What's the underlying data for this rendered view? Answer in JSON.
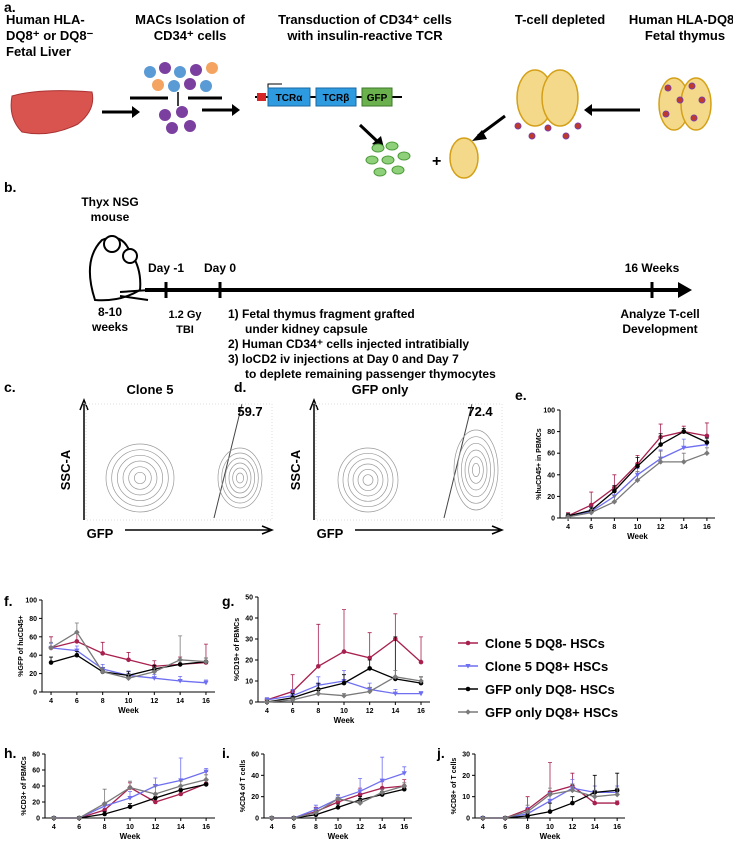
{
  "panel_a": {
    "label": "a.",
    "steps": [
      {
        "lines": [
          "Human HLA-",
          "DQ8⁺ or DQ8⁻",
          "Fetal Liver"
        ]
      },
      {
        "lines": [
          "MACs Isolation of",
          "CD34⁺ cells"
        ]
      },
      {
        "lines": [
          "Transduction of CD34⁺ cells",
          "with insulin-reactive TCR"
        ]
      },
      {
        "lines": [
          "T-cell depleted"
        ]
      },
      {
        "lines": [
          "Human HLA-DQ8⁺",
          "Fetal thymus"
        ]
      }
    ],
    "construct": [
      "TCRα",
      "TCRβ",
      "GFP"
    ],
    "plus": "+"
  },
  "panel_b": {
    "label": "b.",
    "mouse": [
      "Thyx NSG",
      "mouse"
    ],
    "age": [
      "8-10",
      "weeks"
    ],
    "timepoints": [
      "Day -1",
      "Day 0",
      "16 Weeks"
    ],
    "tbi": [
      "1.2 Gy",
      "TBI"
    ],
    "steps": [
      [
        "1) Fetal thymus fragment grafted",
        "under kidney capsule"
      ],
      [
        "2) Human CD34⁺ cells injected intratibially"
      ],
      [
        "3) loCD2 iv injections at Day 0 and Day 7",
        "to deplete remaining passenger thymocytes"
      ]
    ],
    "endpoint": [
      "Analyze T-cell",
      "Development"
    ]
  },
  "flow_panels": [
    {
      "label": "c.",
      "title": "Clone 5",
      "gate": "59.7",
      "y_axis": "SSC-A",
      "x_axis": "GFP"
    },
    {
      "label": "d.",
      "title": "GFP only",
      "gate": "72.4",
      "y_axis": "SSC-A",
      "x_axis": "GFP"
    }
  ],
  "chart_data": [
    {
      "type": "line",
      "label": "e.",
      "ylabel": "%huCD45+ in PBMCs",
      "xlabel": "Week",
      "x": [
        4,
        6,
        8,
        10,
        12,
        14,
        16
      ],
      "xlim": [
        3.3,
        16.7
      ],
      "xticks": [
        4,
        6,
        8,
        10,
        12,
        14,
        16
      ],
      "ylim": [
        0,
        100
      ],
      "yticks": [
        0,
        20,
        40,
        60,
        80,
        100
      ],
      "series": [
        {
          "color": "#a8204f",
          "values": [
            2,
            12,
            28,
            50,
            75,
            80,
            76
          ],
          "errors": [
            3,
            12,
            12,
            8,
            12,
            5,
            12
          ]
        },
        {
          "color": "#6f6ff2",
          "values": [
            1,
            6,
            20,
            40,
            55,
            65,
            68
          ],
          "errors": [
            2,
            4,
            6,
            6,
            8,
            8,
            6
          ]
        },
        {
          "color": "#000000",
          "values": [
            2,
            7,
            25,
            48,
            68,
            80,
            70
          ],
          "errors": [
            2,
            3,
            5,
            8,
            10,
            3,
            4
          ]
        },
        {
          "color": "#7a7a7a",
          "values": [
            1,
            5,
            15,
            35,
            52,
            52,
            60
          ],
          "errors": [
            1,
            3,
            6,
            8,
            10,
            8,
            5
          ]
        }
      ]
    },
    {
      "type": "line",
      "label": "f.",
      "ylabel": "%GFP of huCD45+",
      "xlabel": "Week",
      "x": [
        4,
        6,
        8,
        10,
        12,
        14,
        16
      ],
      "xlim": [
        3.3,
        16.7
      ],
      "xticks": [
        4,
        6,
        8,
        10,
        12,
        14,
        16
      ],
      "ylim": [
        0,
        100
      ],
      "yticks": [
        0,
        20,
        40,
        60,
        80,
        100
      ],
      "series": [
        {
          "color": "#a8204f",
          "values": [
            48,
            55,
            42,
            35,
            28,
            30,
            32
          ],
          "errors": [
            12,
            10,
            12,
            8,
            6,
            8,
            20
          ]
        },
        {
          "color": "#6f6ff2",
          "values": [
            48,
            45,
            25,
            18,
            15,
            12,
            10
          ],
          "errors": [
            5,
            5,
            5,
            5,
            4,
            5,
            3
          ]
        },
        {
          "color": "#000000",
          "values": [
            32,
            40,
            22,
            18,
            25,
            30,
            33
          ],
          "errors": [
            6,
            4,
            4,
            4,
            4,
            5,
            4
          ]
        },
        {
          "color": "#7a7a7a",
          "values": [
            48,
            65,
            22,
            15,
            22,
            35,
            33
          ],
          "errors": [
            6,
            10,
            4,
            4,
            4,
            26,
            4
          ]
        }
      ]
    },
    {
      "type": "line",
      "label": "g.",
      "ylabel": "%CD19+ of PBMCs",
      "xlabel": "Week",
      "x": [
        4,
        6,
        8,
        10,
        12,
        14,
        16
      ],
      "xlim": [
        3.3,
        16.7
      ],
      "xticks": [
        4,
        6,
        8,
        10,
        12,
        14,
        16
      ],
      "ylim": [
        0,
        50
      ],
      "yticks": [
        0,
        10,
        20,
        30,
        40,
        50
      ],
      "series": [
        {
          "name": "Clone 5 DQ8- HSCs",
          "color": "#a8204f",
          "values": [
            1,
            5,
            17,
            24,
            21,
            30,
            19
          ],
          "errors": [
            1,
            8,
            20,
            20,
            12,
            12,
            12
          ]
        },
        {
          "name": "Clone 5 DQ8+ HSCs",
          "color": "#6f6ff2",
          "values": [
            1,
            3,
            8,
            10,
            6,
            4,
            4
          ],
          "errors": [
            1,
            3,
            4,
            5,
            3,
            2,
            1
          ]
        },
        {
          "name": "GFP only DQ8- HSCs",
          "color": "#000000",
          "values": [
            0,
            2,
            6,
            9,
            16,
            11,
            9
          ],
          "errors": [
            1,
            2,
            3,
            4,
            4,
            20,
            3
          ]
        },
        {
          "name": "GFP only DQ8+ HSCs",
          "color": "#7a7a7a",
          "values": [
            0,
            1,
            4,
            3,
            5,
            12,
            10
          ],
          "errors": [
            1,
            1,
            2,
            1,
            2,
            3,
            2
          ]
        }
      ]
    },
    {
      "type": "line",
      "label": "h.",
      "ylabel": "%CD3+ of PBMCs",
      "xlabel": "Week",
      "x": [
        4,
        6,
        8,
        10,
        12,
        14,
        16
      ],
      "xlim": [
        3.3,
        16.7
      ],
      "xticks": [
        4,
        6,
        8,
        10,
        12,
        14,
        16
      ],
      "ylim": [
        0,
        80
      ],
      "yticks": [
        0,
        20,
        40,
        60,
        80
      ],
      "series": [
        {
          "color": "#a8204f",
          "values": [
            0,
            0,
            10,
            38,
            20,
            30,
            43
          ],
          "errors": [
            1,
            0,
            6,
            6,
            6,
            6,
            15
          ]
        },
        {
          "color": "#6f6ff2",
          "values": [
            0,
            0,
            15,
            25,
            40,
            47,
            58
          ],
          "errors": [
            1,
            0,
            4,
            8,
            10,
            28,
            4
          ]
        },
        {
          "color": "#000000",
          "values": [
            0,
            0,
            5,
            14,
            25,
            35,
            42
          ],
          "errors": [
            1,
            0,
            3,
            4,
            4,
            5,
            5
          ]
        },
        {
          "color": "#7a7a7a",
          "values": [
            0,
            0,
            18,
            38,
            30,
            40,
            48
          ],
          "errors": [
            1,
            0,
            18,
            8,
            10,
            6,
            6
          ]
        }
      ]
    },
    {
      "type": "line",
      "label": "i.",
      "ylabel": "%CD4 of T cells",
      "xlabel": "Week",
      "x": [
        4,
        6,
        8,
        10,
        12,
        14,
        16
      ],
      "xlim": [
        3.3,
        16.7
      ],
      "xticks": [
        4,
        6,
        8,
        10,
        12,
        14,
        16
      ],
      "ylim": [
        0,
        60
      ],
      "yticks": [
        0,
        20,
        40,
        60
      ],
      "series": [
        {
          "color": "#a8204f",
          "values": [
            0,
            0,
            6,
            15,
            22,
            28,
            30
          ],
          "errors": [
            1,
            0,
            4,
            4,
            6,
            6,
            6
          ]
        },
        {
          "color": "#6f6ff2",
          "values": [
            0,
            0,
            8,
            18,
            25,
            35,
            42
          ],
          "errors": [
            1,
            0,
            4,
            4,
            12,
            22,
            6
          ]
        },
        {
          "color": "#000000",
          "values": [
            0,
            0,
            3,
            10,
            17,
            22,
            27
          ],
          "errors": [
            1,
            0,
            2,
            3,
            3,
            3,
            3
          ]
        },
        {
          "color": "#7a7a7a",
          "values": [
            0,
            0,
            5,
            18,
            14,
            24,
            30
          ],
          "errors": [
            1,
            0,
            3,
            3,
            3,
            3,
            3
          ]
        }
      ]
    },
    {
      "type": "line",
      "label": "j.",
      "ylabel": "%CD8+ of  T cells",
      "xlabel": "Week",
      "x": [
        4,
        6,
        8,
        10,
        12,
        14,
        16
      ],
      "xlim": [
        3.3,
        16.7
      ],
      "xticks": [
        4,
        6,
        8,
        10,
        12,
        14,
        16
      ],
      "ylim": [
        0,
        30
      ],
      "yticks": [
        0,
        10,
        20,
        30
      ],
      "series": [
        {
          "color": "#a8204f",
          "values": [
            0,
            0,
            4,
            12,
            15,
            7,
            7
          ],
          "errors": [
            0,
            0,
            6,
            14,
            6,
            3,
            1
          ]
        },
        {
          "color": "#6f6ff2",
          "values": [
            0,
            0,
            2,
            8,
            14,
            12,
            12
          ],
          "errors": [
            0,
            0,
            3,
            4,
            4,
            3,
            3
          ]
        },
        {
          "color": "#000000",
          "values": [
            0,
            0,
            1,
            3,
            7,
            12,
            13
          ],
          "errors": [
            0,
            0,
            1,
            4,
            3,
            8,
            8
          ]
        },
        {
          "color": "#7a7a7a",
          "values": [
            0,
            0,
            3,
            11,
            13,
            10,
            11
          ],
          "errors": [
            0,
            0,
            3,
            3,
            3,
            3,
            3
          ]
        }
      ]
    }
  ]
}
